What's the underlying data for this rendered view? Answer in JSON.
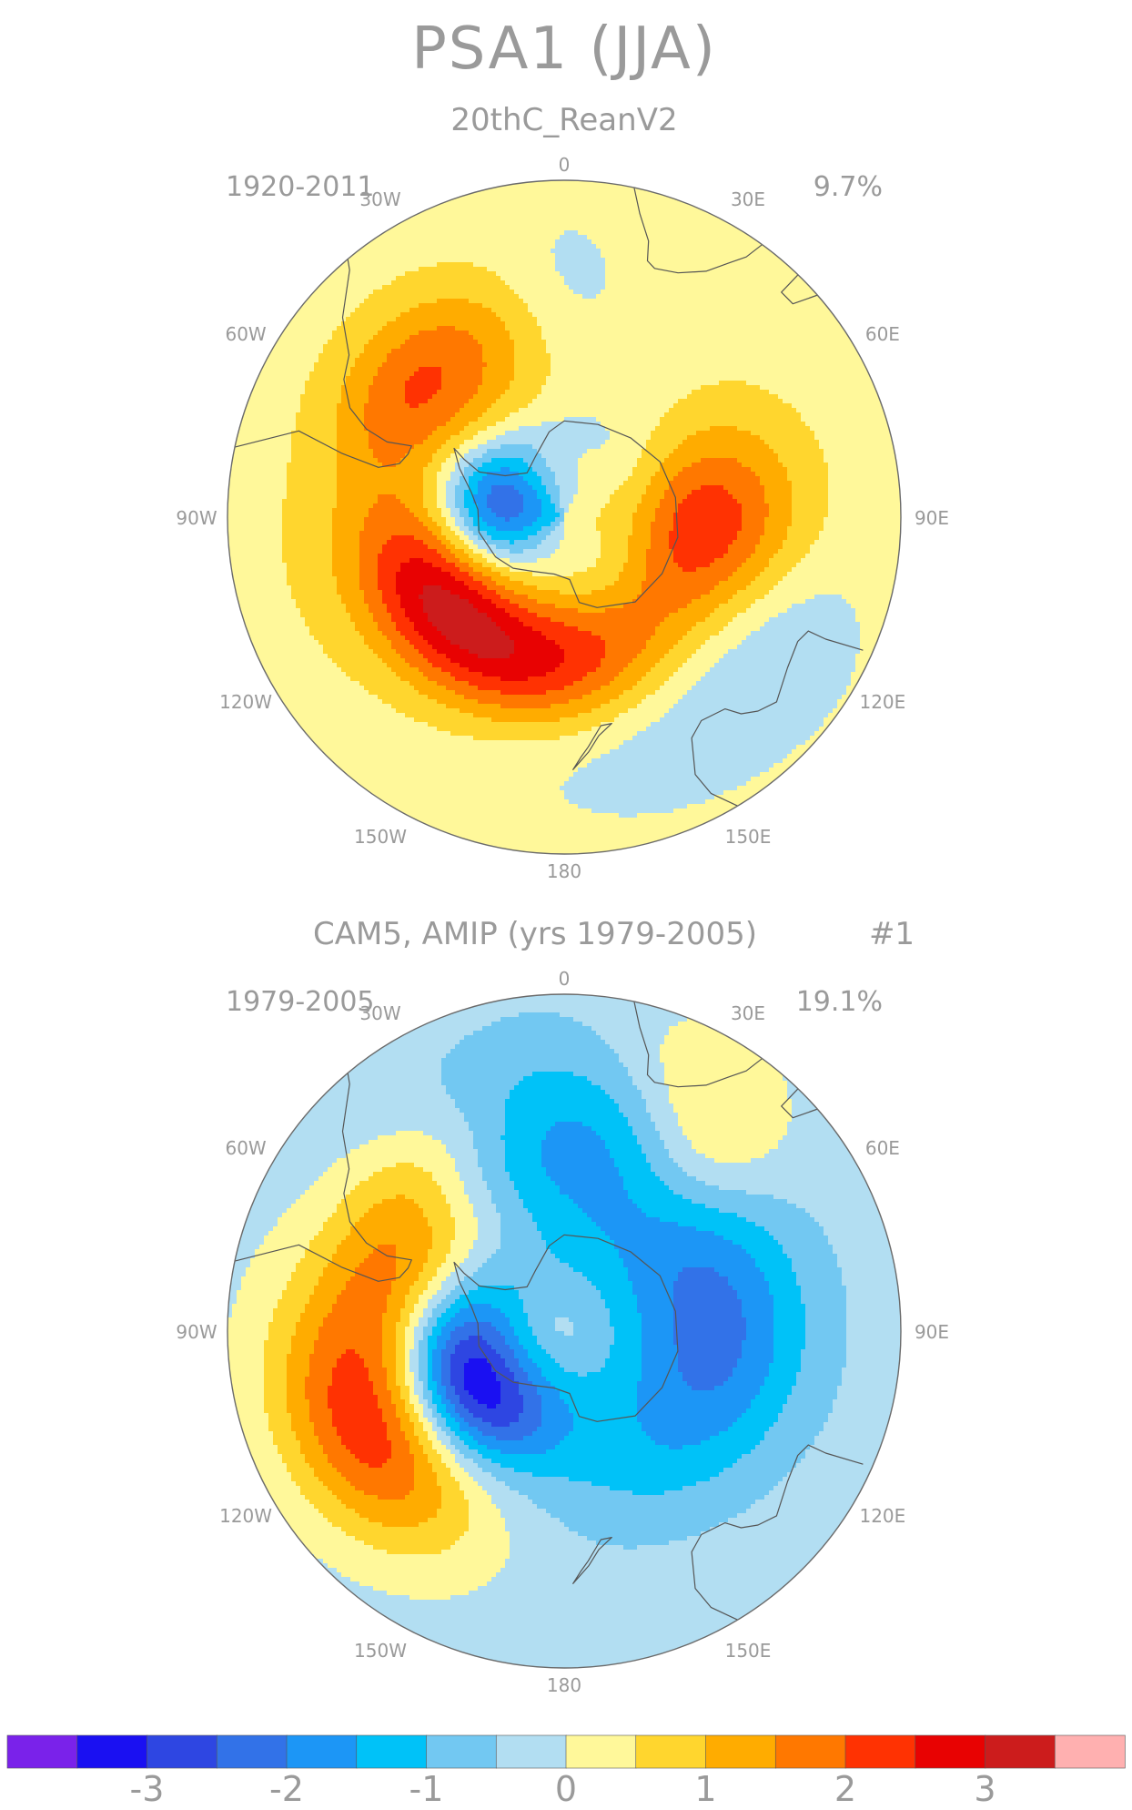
{
  "title": "PSA1 (JJA)",
  "palette": {
    "n35": "#7a22ea",
    "n30": "#1a10f2",
    "n25": "#2e46e2",
    "n20": "#3272e8",
    "n15": "#1c96f6",
    "n10": "#00c2f8",
    "n05": "#72c8f2",
    "n00": "#b2def2",
    "p00": "#fff89a",
    "p05": "#ffd62e",
    "p10": "#ffac00",
    "p15": "#ff7800",
    "p20": "#ff3202",
    "p25": "#e80202",
    "p30": "#cc1c1c",
    "p35": "#ffb0b0",
    "coast": "#555555",
    "text": "#9a9a9a"
  },
  "panels": [
    {
      "name": "20thC_ReanV2",
      "subtitle": "20thC_ReanV2",
      "period": "1920-2011",
      "variance": "9.7%",
      "mode_label": "",
      "background": "p00",
      "anomalies": [
        {
          "lon": 0,
          "lat": -40,
          "amp": -0.35,
          "sx": 8,
          "sy": 12
        },
        {
          "lon": 45,
          "lat": -55,
          "amp": -0.4,
          "sx": 20,
          "sy": 14
        },
        {
          "lon": -45,
          "lat": -48,
          "amp": 1.55,
          "sx": 16,
          "sy": 10
        },
        {
          "lon": 62,
          "lat": -52,
          "amp": 0.6,
          "sx": 16,
          "sy": 12
        },
        {
          "lon": 92,
          "lat": -60,
          "amp": 1.8,
          "sx": 12,
          "sy": 14
        },
        {
          "lon": -80,
          "lat": -72,
          "amp": -2.5,
          "sx": 9,
          "sy": 14
        },
        {
          "lon": 0,
          "lat": -74,
          "amp": -0.3,
          "sx": 35,
          "sy": 8
        },
        {
          "lon": -60,
          "lat": -76,
          "amp": -0.6,
          "sx": 12,
          "sy": 6
        },
        {
          "lon": 35,
          "lat": -78,
          "amp": -0.3,
          "sx": 20,
          "sy": 6
        },
        {
          "lon": 0,
          "lat": -78,
          "amp": 0.5,
          "sx": 10,
          "sy": 4
        },
        {
          "lon": -140,
          "lat": -60,
          "amp": 2.9,
          "sx": 30,
          "sy": 10
        },
        {
          "lon": -100,
          "lat": -52,
          "amp": 0.6,
          "sx": 18,
          "sy": 15
        },
        {
          "lon": 145,
          "lat": -40,
          "amp": -0.6,
          "sx": 28,
          "sy": 12
        },
        {
          "lon": 120,
          "lat": -35,
          "amp": -0.3,
          "sx": 12,
          "sy": 10
        }
      ]
    },
    {
      "name": "CAM5, AMIP (yrs 1979-2005)",
      "subtitle": "CAM5, AMIP (yrs 1979-2005)",
      "period": "1979-2005",
      "variance": "19.1%",
      "mode_label": "#1",
      "background": "n00",
      "anomalies": [
        {
          "lon": 0,
          "lat": -40,
          "amp": -0.3,
          "sx": 18,
          "sy": 14
        },
        {
          "lon": 38,
          "lat": -42,
          "amp": 0.9,
          "sx": 9,
          "sy": 12
        },
        {
          "lon": 25,
          "lat": -30,
          "amp": 0.5,
          "sx": 10,
          "sy": 10
        },
        {
          "lon": -10,
          "lat": -52,
          "amp": -1.3,
          "sx": 20,
          "sy": 13
        },
        {
          "lon": 85,
          "lat": -58,
          "amp": -1.5,
          "sx": 22,
          "sy": 14
        },
        {
          "lon": -60,
          "lat": -58,
          "amp": 1.5,
          "sx": 14,
          "sy": 12
        },
        {
          "lon": -40,
          "lat": -45,
          "amp": 0.8,
          "sx": 16,
          "sy": 8
        },
        {
          "lon": -95,
          "lat": -45,
          "amp": 0.8,
          "sx": 18,
          "sy": 14
        },
        {
          "lon": -120,
          "lat": -45,
          "amp": 2.1,
          "sx": 18,
          "sy": 12
        },
        {
          "lon": -115,
          "lat": -68,
          "amp": -3.3,
          "sx": 14,
          "sy": 9
        },
        {
          "lon": 140,
          "lat": -60,
          "amp": -0.6,
          "sx": 35,
          "sy": 12
        },
        {
          "lon": 0,
          "lat": -74,
          "amp": -0.25,
          "sx": 30,
          "sy": 8
        }
      ]
    }
  ],
  "map": {
    "lat_edge": -20,
    "meridian_labels": [
      "0",
      "30E",
      "60E",
      "90E",
      "120E",
      "150E",
      "180",
      "150W",
      "120W",
      "90W",
      "60W",
      "30W"
    ],
    "coastlines": [
      {
        "name": "antarctica",
        "closed": true,
        "pts": [
          [
            0,
            -70
          ],
          [
            20,
            -69.5
          ],
          [
            40,
            -68.5
          ],
          [
            60,
            -67
          ],
          [
            80,
            -66.5
          ],
          [
            100,
            -66
          ],
          [
            120,
            -66.5
          ],
          [
            140,
            -67
          ],
          [
            160,
            -70
          ],
          [
            170,
            -72
          ],
          [
            175,
            -77
          ],
          [
            -170,
            -78
          ],
          [
            -150,
            -77
          ],
          [
            -135,
            -75
          ],
          [
            -120,
            -73.5
          ],
          [
            -100,
            -72
          ],
          [
            -85,
            -72
          ],
          [
            -75,
            -70
          ],
          [
            -65,
            -66
          ],
          [
            -58,
            -63
          ],
          [
            -60,
            -66
          ],
          [
            -62,
            -70
          ],
          [
            -55,
            -75
          ],
          [
            -40,
            -78
          ],
          [
            -25,
            -76
          ],
          [
            -10,
            -72
          ],
          [
            0,
            -70
          ]
        ]
      },
      {
        "name": "south-america",
        "closed": false,
        "pts": [
          [
            -78,
            -20
          ],
          [
            -72,
            -32
          ],
          [
            -74,
            -42
          ],
          [
            -75,
            -50
          ],
          [
            -72,
            -54
          ],
          [
            -68,
            -55
          ],
          [
            -65,
            -55
          ],
          [
            -67,
            -50
          ],
          [
            -66,
            -45
          ],
          [
            -63,
            -40
          ],
          [
            -58,
            -36
          ],
          [
            -53,
            -34
          ],
          [
            -48,
            -28
          ],
          [
            -41,
            -22
          ],
          [
            -40,
            -20
          ]
        ]
      },
      {
        "name": "africa",
        "closed": false,
        "pts": [
          [
            12,
            -20
          ],
          [
            14,
            -25
          ],
          [
            17,
            -30
          ],
          [
            18,
            -34
          ],
          [
            20,
            -35
          ],
          [
            25,
            -34
          ],
          [
            30,
            -31
          ],
          [
            33,
            -27
          ],
          [
            35,
            -24
          ],
          [
            36,
            -20
          ]
        ]
      },
      {
        "name": "australia",
        "closed": false,
        "pts": [
          [
            114,
            -22
          ],
          [
            115,
            -30
          ],
          [
            115,
            -34
          ],
          [
            118,
            -35
          ],
          [
            124,
            -34
          ],
          [
            131,
            -31.5
          ],
          [
            135,
            -33
          ],
          [
            138,
            -35
          ],
          [
            140,
            -38
          ],
          [
            146,
            -39
          ],
          [
            150,
            -37
          ],
          [
            153,
            -30
          ],
          [
            152,
            -25
          ],
          [
            149,
            -20
          ]
        ]
      },
      {
        "name": "new-zealand",
        "closed": true,
        "pts": [
          [
            167,
            -46
          ],
          [
            171,
            -44
          ],
          [
            174,
            -41
          ],
          [
            178,
            -37.5
          ],
          [
            176,
            -40
          ],
          [
            174,
            -42
          ],
          [
            170,
            -46
          ],
          [
            167,
            -46
          ]
        ]
      },
      {
        "name": "madagascar",
        "closed": true,
        "pts": [
          [
            44,
            -25
          ],
          [
            47,
            -25
          ],
          [
            50,
            -16
          ],
          [
            48,
            -14
          ],
          [
            44,
            -20
          ],
          [
            44,
            -25
          ]
        ]
      }
    ]
  },
  "colorbar": {
    "levels": [
      "n35",
      "n30",
      "n25",
      "n20",
      "n15",
      "n10",
      "n05",
      "n00",
      "p00",
      "p05",
      "p10",
      "p15",
      "p20",
      "p25",
      "p30",
      "p35"
    ],
    "tick_labels": [
      "-3",
      "-2",
      "-1",
      "0",
      "1",
      "2",
      "3"
    ],
    "tick_values": [
      -3,
      -2,
      -1,
      0,
      1,
      2,
      3
    ],
    "range": [
      -4,
      4
    ]
  }
}
